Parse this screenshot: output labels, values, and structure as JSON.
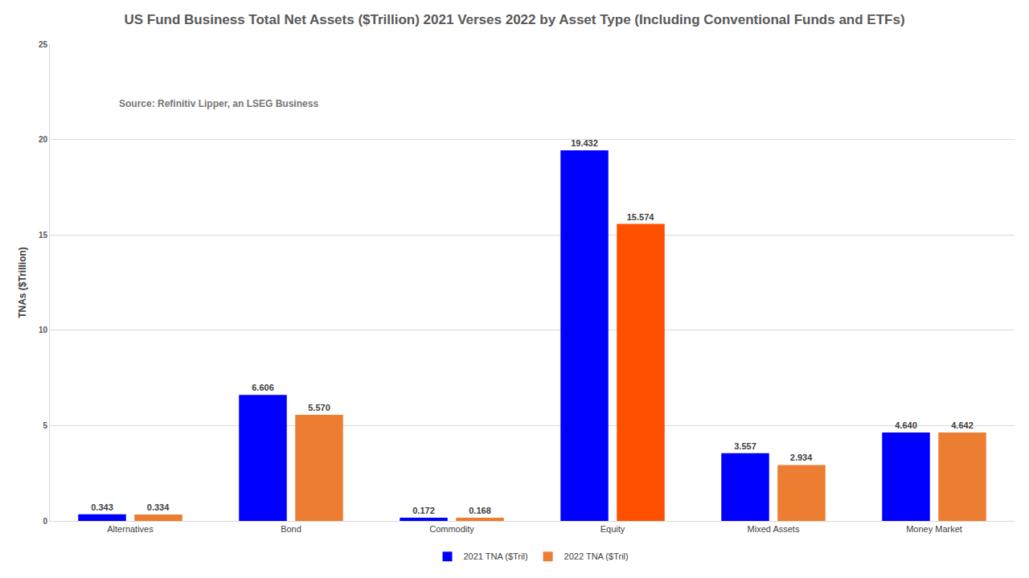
{
  "chart_data": {
    "type": "bar",
    "title": "US Fund Business Total Net Assets ($Trillion) 2021 Verses 2022 by Asset Type (Including Conventional Funds and ETFs)",
    "y_label": "TNAs ($Trillion)",
    "annotations": [
      "Source: Refinitiv Lipper, an LSEG Business"
    ],
    "categories": [
      "Alternatives",
      "Bond",
      "Commodity",
      "Equity",
      "Mixed Assets",
      "Money Market"
    ],
    "series": [
      {
        "name": "2021 TNA ($Tril)",
        "color": "#0000ff",
        "values": [
          0.343,
          6.606,
          0.172,
          19.432,
          3.557,
          4.64
        ],
        "value_labels": [
          "0.343",
          "6.606",
          "0.172",
          "19.432",
          "3.557",
          "4.640"
        ]
      },
      {
        "name": "2022 TNA ($Tril)",
        "colors": [
          "#ed7d31",
          "#ed7d31",
          "#ed7d31",
          "#ff5000",
          "#ed7d31",
          "#ed7d31"
        ],
        "values": [
          0.334,
          5.57,
          0.168,
          15.574,
          2.934,
          4.642
        ],
        "value_labels": [
          "0.334",
          "5.570",
          "0.168",
          "15.574",
          "2.934",
          "4.642"
        ]
      }
    ],
    "ylim": [
      0,
      25
    ],
    "yticks": [
      0,
      5,
      10,
      15,
      20,
      25
    ],
    "grid": true,
    "legend": "bottom",
    "data_labels": true
  }
}
